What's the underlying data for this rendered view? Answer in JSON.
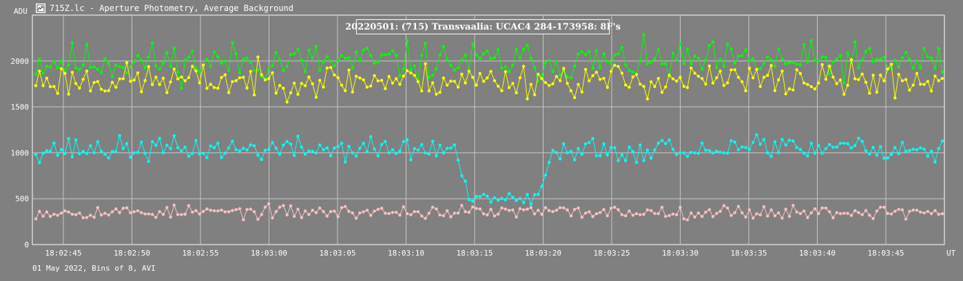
{
  "window": {
    "title": "715Z.lc - Aperture Photometry, Average Background",
    "icon": "chart-app-icon"
  },
  "footer": {
    "text": "01 May 2022, Bins of 8, AVI"
  },
  "chart_data": {
    "type": "line",
    "title": "20220501: (715) Transvaalia: UCAC4 284-173958: 8F's",
    "ylabel": "ADU",
    "xlabel": "UT",
    "ylim": [
      0,
      2500
    ],
    "yticks": [
      0,
      500,
      1000,
      1500,
      2000
    ],
    "xticks": [
      "18:02:45",
      "18:02:50",
      "18:02:55",
      "18:03:00",
      "18:03:05",
      "18:03:10",
      "18:03:15",
      "18:03:20",
      "18:03:25",
      "18:03:30",
      "18:03:35",
      "18:03:40",
      "18:03:45"
    ],
    "grid": true,
    "n_points": 250,
    "series": [
      {
        "color": "#00ff00",
        "mean": 1990,
        "amp": 160,
        "seed": 11
      },
      {
        "color": "#ffff00",
        "mean": 1790,
        "amp": 140,
        "seed": 23
      },
      {
        "color": "#00ffff",
        "mean": 1040,
        "amp": 100,
        "seed": 37,
        "event": {
          "start_index": 116,
          "end_index": 141,
          "level": 500,
          "ramp": 3
        }
      },
      {
        "color": "#ffc0c0",
        "mean": 355,
        "amp": 55,
        "seed": 53
      }
    ]
  }
}
